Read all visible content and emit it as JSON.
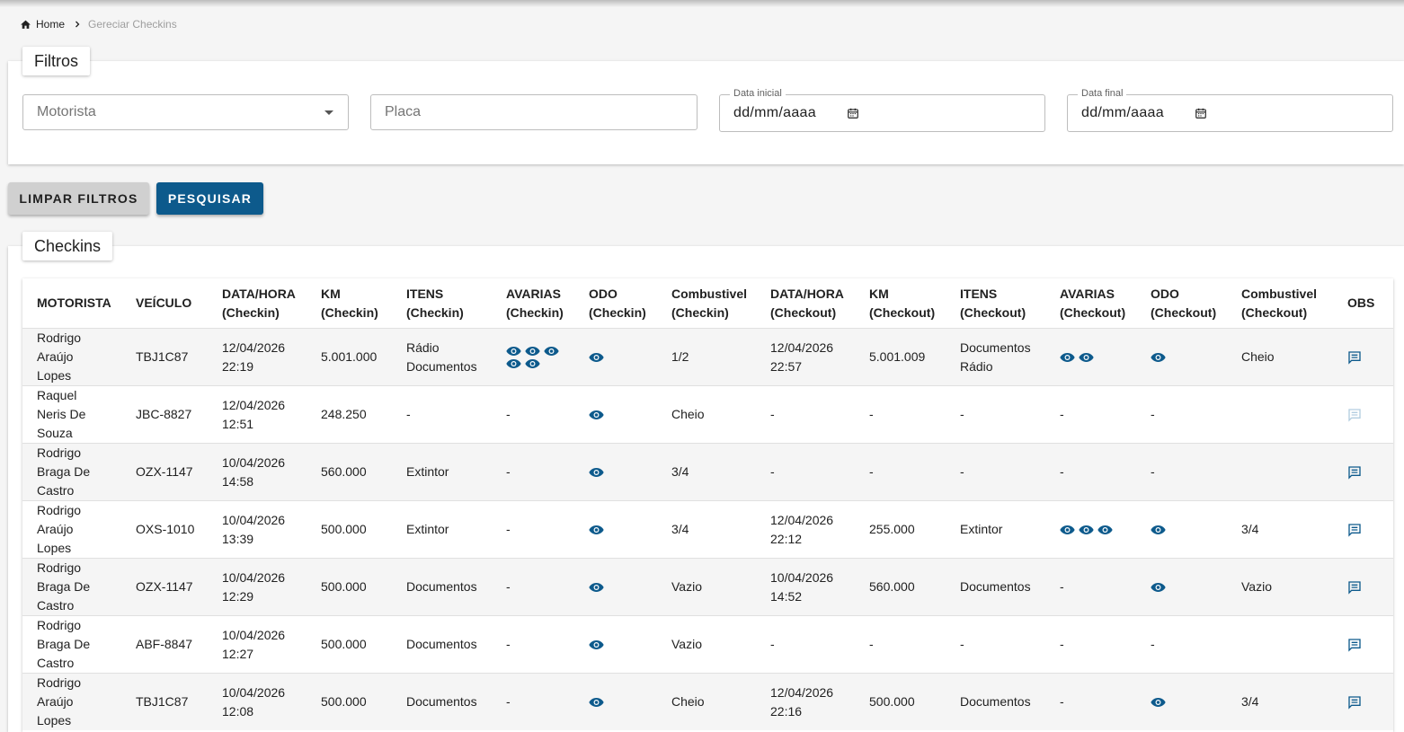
{
  "breadcrumb": {
    "home": "Home",
    "current": "Gereciar Checkins"
  },
  "filters": {
    "title": "Filtros",
    "motorista_placeholder": "Motorista",
    "placa_placeholder": "Placa",
    "data_inicial_label": "Data inicial",
    "data_inicial_value": "dd/mm/aaaa",
    "data_final_label": "Data final",
    "data_final_value": "dd/mm/aaaa"
  },
  "buttons": {
    "clear": "LIMPAR FILTROS",
    "search": "PESQUISAR"
  },
  "colors": {
    "primary": "#0d5a8c",
    "icon": "#0d5a8c",
    "icon_disabled": "#b3cde0"
  },
  "checkins": {
    "title": "Checkins",
    "headers": [
      [
        "MOTORISTA",
        ""
      ],
      [
        "VEÍCULO",
        ""
      ],
      [
        "DATA/HORA",
        "(Checkin)"
      ],
      [
        "KM",
        "(Checkin)"
      ],
      [
        "ITENS",
        "(Checkin)"
      ],
      [
        "AVARIAS",
        "(Checkin)"
      ],
      [
        "ODO",
        "(Checkin)"
      ],
      [
        "Combustivel",
        "(Checkin)"
      ],
      [
        "DATA/HORA",
        "(Checkout)"
      ],
      [
        "KM",
        "(Checkout)"
      ],
      [
        "ITENS",
        "(Checkout)"
      ],
      [
        "AVARIAS",
        "(Checkout)"
      ],
      [
        "ODO",
        "(Checkout)"
      ],
      [
        "Combustivel",
        "(Checkout)"
      ],
      [
        "OBS",
        ""
      ]
    ],
    "rows": [
      {
        "motorista": [
          "Rodrigo",
          "Araújo",
          "Lopes"
        ],
        "veiculo": "TBJ1C87",
        "checkin_data": [
          "12/04/2026",
          "22:19"
        ],
        "checkin_km": "5.001.000",
        "checkin_itens": [
          "Rádio",
          "Documentos"
        ],
        "checkin_avarias": 5,
        "checkin_avarias_text": "",
        "checkin_odo": 1,
        "checkin_odo_text": "",
        "checkin_comb": "1/2",
        "checkout_data": [
          "12/04/2026",
          "22:57"
        ],
        "checkout_km": "5.001.009",
        "checkout_itens": [
          "Documentos",
          "Rádio"
        ],
        "checkout_avarias": 2,
        "checkout_avarias_text": "",
        "checkout_odo": 1,
        "checkout_odo_text": "",
        "checkout_comb": "Cheio",
        "obs_active": true
      },
      {
        "motorista": [
          "Raquel",
          "Neris De",
          "Souza"
        ],
        "veiculo": "JBC-8827",
        "checkin_data": [
          "12/04/2026",
          "12:51"
        ],
        "checkin_km": "248.250",
        "checkin_itens": [
          "-"
        ],
        "checkin_avarias": 0,
        "checkin_avarias_text": "-",
        "checkin_odo": 1,
        "checkin_odo_text": "",
        "checkin_comb": "Cheio",
        "checkout_data": [
          "-"
        ],
        "checkout_km": "-",
        "checkout_itens": [
          "-"
        ],
        "checkout_avarias": 0,
        "checkout_avarias_text": "-",
        "checkout_odo": 0,
        "checkout_odo_text": "-",
        "checkout_comb": "",
        "obs_active": false
      },
      {
        "motorista": [
          "Rodrigo",
          "Braga De",
          "Castro"
        ],
        "veiculo": "OZX-1147",
        "checkin_data": [
          "10/04/2026",
          "14:58"
        ],
        "checkin_km": "560.000",
        "checkin_itens": [
          "Extintor"
        ],
        "checkin_avarias": 0,
        "checkin_avarias_text": "-",
        "checkin_odo": 1,
        "checkin_odo_text": "",
        "checkin_comb": "3/4",
        "checkout_data": [
          "-"
        ],
        "checkout_km": "-",
        "checkout_itens": [
          "-"
        ],
        "checkout_avarias": 0,
        "checkout_avarias_text": "-",
        "checkout_odo": 0,
        "checkout_odo_text": "-",
        "checkout_comb": "",
        "obs_active": true
      },
      {
        "motorista": [
          "Rodrigo",
          "Araújo",
          "Lopes"
        ],
        "veiculo": "OXS-1010",
        "checkin_data": [
          "10/04/2026",
          "13:39"
        ],
        "checkin_km": "500.000",
        "checkin_itens": [
          "Extintor"
        ],
        "checkin_avarias": 0,
        "checkin_avarias_text": "-",
        "checkin_odo": 1,
        "checkin_odo_text": "",
        "checkin_comb": "3/4",
        "checkout_data": [
          "12/04/2026",
          "22:12"
        ],
        "checkout_km": "255.000",
        "checkout_itens": [
          "Extintor"
        ],
        "checkout_avarias": 3,
        "checkout_avarias_text": "",
        "checkout_odo": 1,
        "checkout_odo_text": "",
        "checkout_comb": "3/4",
        "obs_active": true
      },
      {
        "motorista": [
          "Rodrigo",
          "Braga De",
          "Castro"
        ],
        "veiculo": "OZX-1147",
        "checkin_data": [
          "10/04/2026",
          "12:29"
        ],
        "checkin_km": "500.000",
        "checkin_itens": [
          "Documentos"
        ],
        "checkin_avarias": 0,
        "checkin_avarias_text": "-",
        "checkin_odo": 1,
        "checkin_odo_text": "",
        "checkin_comb": "Vazio",
        "checkout_data": [
          "10/04/2026",
          "14:52"
        ],
        "checkout_km": "560.000",
        "checkout_itens": [
          "Documentos"
        ],
        "checkout_avarias": 0,
        "checkout_avarias_text": "-",
        "checkout_odo": 1,
        "checkout_odo_text": "",
        "checkout_comb": "Vazio",
        "obs_active": true
      },
      {
        "motorista": [
          "Rodrigo",
          "Braga De",
          "Castro"
        ],
        "veiculo": "ABF-8847",
        "checkin_data": [
          "10/04/2026",
          "12:27"
        ],
        "checkin_km": "500.000",
        "checkin_itens": [
          "Documentos"
        ],
        "checkin_avarias": 0,
        "checkin_avarias_text": "-",
        "checkin_odo": 1,
        "checkin_odo_text": "",
        "checkin_comb": "Vazio",
        "checkout_data": [
          "-"
        ],
        "checkout_km": "-",
        "checkout_itens": [
          "-"
        ],
        "checkout_avarias": 0,
        "checkout_avarias_text": "-",
        "checkout_odo": 0,
        "checkout_odo_text": "-",
        "checkout_comb": "",
        "obs_active": true
      },
      {
        "motorista": [
          "Rodrigo",
          "Araújo",
          "Lopes"
        ],
        "veiculo": "TBJ1C87",
        "checkin_data": [
          "10/04/2026",
          "12:08"
        ],
        "checkin_km": "500.000",
        "checkin_itens": [
          "Documentos"
        ],
        "checkin_avarias": 0,
        "checkin_avarias_text": "-",
        "checkin_odo": 1,
        "checkin_odo_text": "",
        "checkin_comb": "Cheio",
        "checkout_data": [
          "12/04/2026",
          "22:16"
        ],
        "checkout_km": "500.000",
        "checkout_itens": [
          "Documentos"
        ],
        "checkout_avarias": 0,
        "checkout_avarias_text": "-",
        "checkout_odo": 1,
        "checkout_odo_text": "",
        "checkout_comb": "3/4",
        "obs_active": true
      }
    ]
  }
}
